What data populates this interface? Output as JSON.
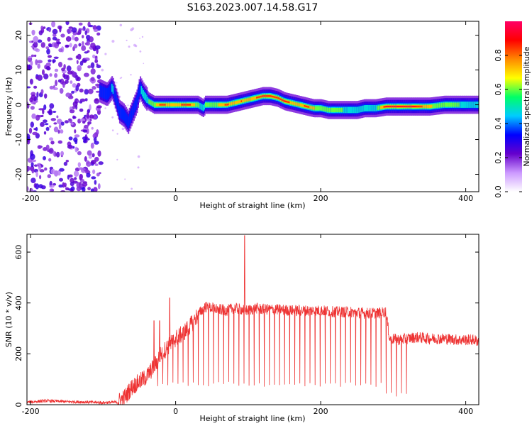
{
  "figure_title": "S163.2023.007.14.58.G17",
  "chart_data": [
    {
      "type": "heatmap",
      "title": "",
      "xlabel": "Height of straight line (km)",
      "ylabel": "Frequency (Hz)",
      "xlim": [
        -205,
        418
      ],
      "ylim": [
        -25,
        24
      ],
      "xticks": [
        -200,
        0,
        200,
        400
      ],
      "yticks": [
        -20,
        -10,
        0,
        10,
        20
      ],
      "colorbar": {
        "label": "Normalized spectral amplitude",
        "range": [
          0,
          1
        ],
        "ticks": [
          0.0,
          0.2,
          0.4,
          0.6,
          0.8
        ],
        "colormap": [
          "#ffffff",
          "#cc99ff",
          "#6600cc",
          "#0000ff",
          "#00ccff",
          "#00ff66",
          "#ffff00",
          "#ff8800",
          "#ff0000",
          "#ff0066"
        ]
      },
      "noise_region_x": [
        -205,
        -103
      ],
      "ridge": {
        "x": [
          -105,
          -95,
          -88,
          -82,
          -78,
          -72,
          -66,
          -60,
          -54,
          -50,
          -45,
          -38,
          -30,
          -20,
          -10,
          0,
          10,
          20,
          30,
          38,
          40,
          50,
          60,
          70,
          80,
          90,
          100,
          110,
          120,
          130,
          140,
          150,
          160,
          170,
          180,
          190,
          200,
          210,
          220,
          230,
          240,
          250,
          260,
          270,
          275,
          290,
          310,
          330,
          350,
          370,
          390,
          418
        ],
        "y": [
          4,
          3,
          5,
          1,
          -2,
          -3,
          -5,
          -2,
          1,
          5,
          3,
          1,
          0,
          0,
          0,
          0,
          0,
          0,
          0,
          -1,
          0,
          0,
          0,
          0,
          0.5,
          1,
          1.5,
          2,
          2.5,
          2.5,
          2,
          1,
          0.5,
          0,
          -0.5,
          -1,
          -1,
          -1.5,
          -1.5,
          -1.5,
          -1.5,
          -1.5,
          -1,
          -1,
          -1,
          -0.5,
          -0.5,
          -0.5,
          -0.5,
          0,
          0,
          0
        ],
        "amplitude": [
          0.4,
          0.3,
          0.45,
          0.35,
          0.3,
          0.3,
          0.35,
          0.3,
          0.35,
          0.4,
          0.5,
          0.55,
          0.6,
          0.9,
          0.7,
          0.7,
          0.85,
          0.8,
          0.6,
          0.45,
          0.6,
          0.6,
          0.7,
          0.85,
          0.7,
          0.8,
          0.75,
          0.8,
          0.9,
          0.85,
          0.8,
          0.9,
          0.75,
          0.7,
          0.85,
          0.7,
          0.6,
          0.6,
          0.55,
          0.55,
          0.5,
          0.5,
          0.45,
          0.45,
          0.5,
          0.95,
          0.95,
          0.9,
          0.7,
          0.6,
          0.55,
          0.5
        ]
      }
    },
    {
      "type": "line",
      "title": "",
      "xlabel": "Height of straight line (km)",
      "ylabel": "SNR (10 * v/v)",
      "xlim": [
        -205,
        418
      ],
      "ylim": [
        0,
        670
      ],
      "xticks": [
        -200,
        0,
        200,
        400
      ],
      "yticks": [
        0,
        200,
        400,
        600
      ],
      "color": "#ee3333",
      "series": [
        {
          "x": [
            -205,
            -180,
            -150,
            -120,
            -100,
            -80,
            -70,
            -60,
            -50,
            -40,
            -30,
            -20,
            -10,
            0,
            10,
            20,
            30,
            40,
            50,
            60,
            70,
            80,
            90,
            100,
            110,
            120,
            140,
            160,
            180,
            200,
            220,
            240,
            260,
            280,
            290,
            295,
            310,
            330,
            350,
            370,
            390,
            410,
            418
          ],
          "y": [
            10,
            15,
            12,
            10,
            8,
            10,
            30,
            70,
            90,
            110,
            150,
            200,
            230,
            260,
            280,
            310,
            350,
            385,
            380,
            375,
            370,
            380,
            375,
            370,
            380,
            375,
            375,
            370,
            370,
            370,
            365,
            365,
            360,
            360,
            365,
            260,
            255,
            265,
            260,
            260,
            255,
            255,
            250
          ],
          "dropout_floor": 80,
          "dropout_spacing_km": 7,
          "dropout_range_km": [
            -25,
            325
          ],
          "spikes": [
            [
              -30,
              330
            ],
            [
              -22,
              330
            ],
            [
              -8,
              420
            ],
            [
              95,
              665
            ]
          ]
        }
      ]
    }
  ]
}
